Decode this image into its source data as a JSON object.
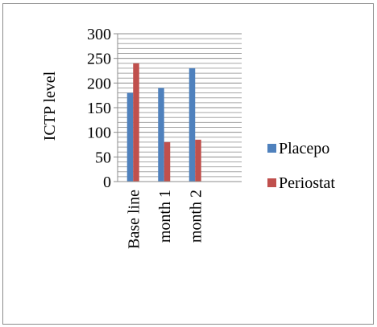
{
  "chart_data": {
    "type": "bar",
    "title": "",
    "xlabel": "",
    "ylabel": "ICTP level",
    "categories": [
      "Base line",
      "month 1",
      "month 2"
    ],
    "series": [
      {
        "name": "Placepo",
        "values": [
          180,
          190,
          230
        ],
        "color": "#4f81bd"
      },
      {
        "name": "Periostat",
        "values": [
          240,
          80,
          85
        ],
        "color": "#c0504d"
      }
    ],
    "ylim": [
      0,
      300
    ],
    "yticks": [
      0,
      50,
      100,
      150,
      200,
      250,
      300
    ],
    "grid": true,
    "grid_minor_step": 10,
    "legend_position": "right"
  }
}
